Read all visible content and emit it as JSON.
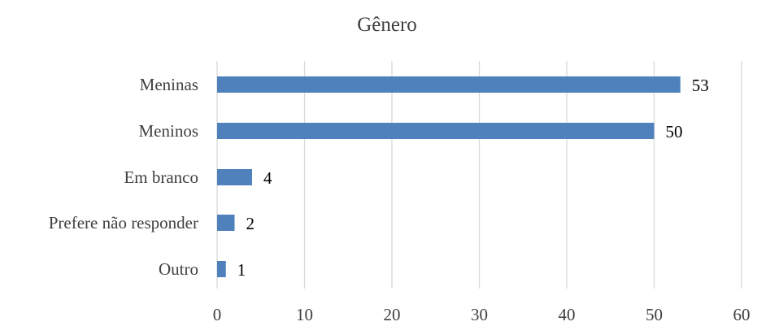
{
  "chart_data": {
    "type": "bar",
    "orientation": "horizontal",
    "title": "Gênero",
    "categories": [
      "Meninas",
      "Meninos",
      "Em branco",
      "Prefere não responder",
      "Outro"
    ],
    "values": [
      53,
      50,
      4,
      2,
      1
    ],
    "xlim": [
      0,
      60
    ],
    "xticks": [
      0,
      10,
      20,
      30,
      40,
      50,
      60
    ],
    "grid": true,
    "legend": "none",
    "bar_color": "#4f81bd"
  }
}
